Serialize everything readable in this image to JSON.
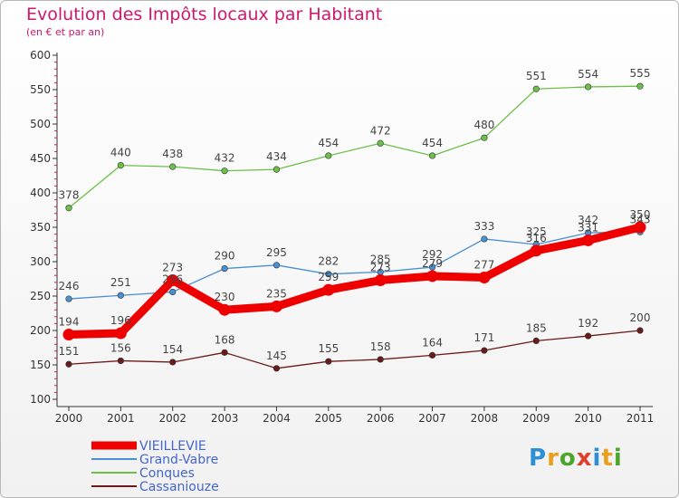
{
  "title": "Evolution des Impôts locaux par Habitant",
  "subtitle": "(en € et par an)",
  "logo": {
    "text": "Proxiti",
    "colors": [
      "#2e8fd6",
      "#e8a020",
      "#4aa52b",
      "#e0402a",
      "#2e8fd6",
      "#e8a020",
      "#4aa52b"
    ]
  },
  "chart_data": {
    "type": "line",
    "title": "Evolution des Impôts locaux par Habitant",
    "subtitle": "(en € et par an)",
    "x": [
      "2000",
      "2001",
      "2002",
      "2003",
      "2004",
      "2005",
      "2006",
      "2007",
      "2008",
      "2009",
      "2010",
      "2011"
    ],
    "ylim": [
      100,
      600
    ],
    "yticks": [
      100,
      150,
      200,
      250,
      300,
      350,
      400,
      450,
      500,
      550,
      600
    ],
    "grid": false,
    "legend_position": "bottom-left",
    "series": [
      {
        "name": "VIEILLEVIE",
        "color": "#ee0000",
        "thick": true,
        "values": [
          194,
          196,
          273,
          230,
          235,
          259,
          273,
          279,
          277,
          316,
          331,
          350
        ]
      },
      {
        "name": "Grand-Vabre",
        "color": "#4a90d0",
        "thick": false,
        "values": [
          246,
          251,
          256,
          290,
          295,
          282,
          285,
          292,
          333,
          325,
          342,
          343
        ]
      },
      {
        "name": "Conques",
        "color": "#6cc04a",
        "thick": false,
        "values": [
          378,
          440,
          438,
          432,
          434,
          454,
          472,
          454,
          480,
          551,
          554,
          555
        ]
      },
      {
        "name": "Cassaniouze",
        "color": "#6b1a1a",
        "thick": false,
        "values": [
          151,
          156,
          154,
          168,
          145,
          155,
          158,
          164,
          171,
          185,
          192,
          200
        ]
      }
    ]
  }
}
